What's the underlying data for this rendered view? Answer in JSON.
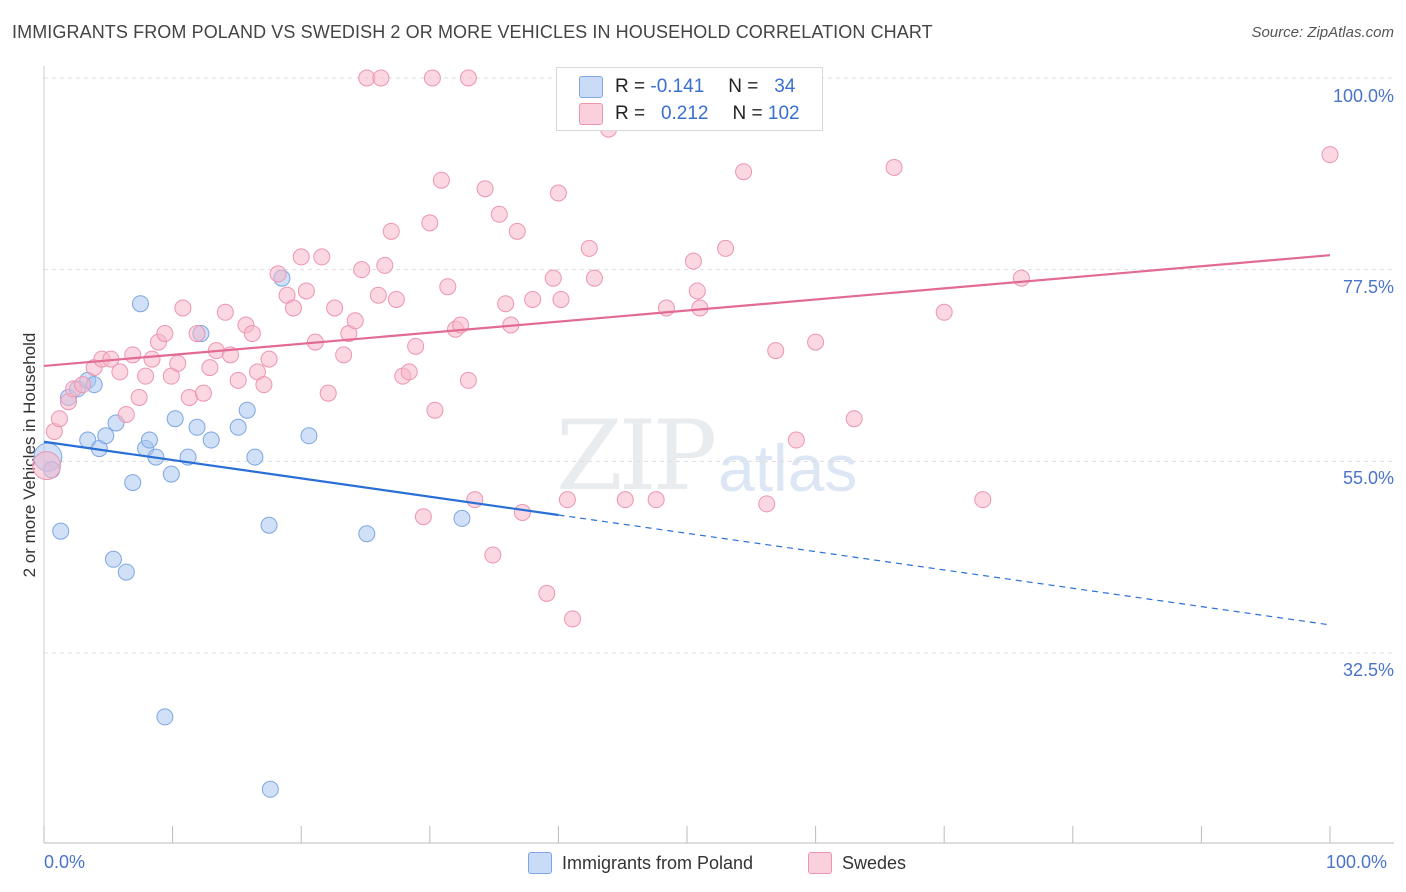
{
  "title": "IMMIGRANTS FROM POLAND VS SWEDISH 2 OR MORE VEHICLES IN HOUSEHOLD CORRELATION CHART",
  "source": "Source: ZipAtlas.com",
  "watermark": {
    "zip": "ZIP",
    "atlas": "atlas"
  },
  "legend_stats": [
    {
      "r_label": "R =",
      "r_value": "-0.141",
      "n_label": "N =",
      "n_value": "34",
      "color": "#a8c6f0"
    },
    {
      "r_label": "R =",
      "r_value": "0.212",
      "n_label": "N =",
      "n_value": "102",
      "color": "#f7b6ca"
    }
  ],
  "chart_data": {
    "type": "scatter",
    "xlabel": "",
    "ylabel": "2 or more Vehicles in Household",
    "xlim": [
      0,
      100
    ],
    "ylim": [
      10,
      100
    ],
    "x_tick_labels": [
      "0.0%",
      "100.0%"
    ],
    "y_ticks": [
      32.5,
      55.0,
      77.5,
      100.0
    ],
    "y_tick_labels": [
      "32.5%",
      "55.0%",
      "77.5%",
      "100.0%"
    ],
    "grid": true,
    "legend": [
      "Immigrants from Poland",
      "Swedes"
    ],
    "series": [
      {
        "name": "Immigrants from Poland",
        "color": "#a8c6f0",
        "stroke": "#7ea6e2",
        "line_color": "#2a6fd6",
        "trend": {
          "x": [
            0,
            40
          ],
          "y": [
            57.3,
            48.7
          ],
          "dashed_to": [
            100,
            35.8
          ]
        },
        "points": [
          [
            0.3,
            55.5
          ],
          [
            0.6,
            54.0
          ],
          [
            1.3,
            46.8
          ],
          [
            1.9,
            62.5
          ],
          [
            2.6,
            63.5
          ],
          [
            3.4,
            64.5
          ],
          [
            3.9,
            64.0
          ],
          [
            3.4,
            57.5
          ],
          [
            4.3,
            56.5
          ],
          [
            4.8,
            58.0
          ],
          [
            5.6,
            59.5
          ],
          [
            5.4,
            43.5
          ],
          [
            6.4,
            42.0
          ],
          [
            6.9,
            52.5
          ],
          [
            7.5,
            73.5
          ],
          [
            7.9,
            56.5
          ],
          [
            8.2,
            57.5
          ],
          [
            8.7,
            55.5
          ],
          [
            9.4,
            25.0
          ],
          [
            9.9,
            53.5
          ],
          [
            10.2,
            60.0
          ],
          [
            11.2,
            55.5
          ],
          [
            11.9,
            59.0
          ],
          [
            12.2,
            70.0
          ],
          [
            13.0,
            57.5
          ],
          [
            15.1,
            59.0
          ],
          [
            15.8,
            61.0
          ],
          [
            16.4,
            55.5
          ],
          [
            17.5,
            47.5
          ],
          [
            17.6,
            16.5
          ],
          [
            18.5,
            76.5
          ],
          [
            20.6,
            58.0
          ],
          [
            25.1,
            46.5
          ],
          [
            32.5,
            48.3
          ]
        ]
      },
      {
        "name": "Swedes",
        "color": "#f7b6ca",
        "stroke": "#ec95b1",
        "line_color": "#e26b93",
        "trend": {
          "x": [
            0,
            100
          ],
          "y": [
            66.2,
            79.2
          ]
        },
        "points": [
          [
            0.2,
            54.5
          ],
          [
            0.8,
            58.5
          ],
          [
            1.2,
            60.0
          ],
          [
            1.9,
            62.0
          ],
          [
            2.3,
            63.5
          ],
          [
            3.0,
            64.0
          ],
          [
            3.9,
            66.0
          ],
          [
            4.5,
            67.0
          ],
          [
            5.2,
            67.0
          ],
          [
            5.9,
            65.5
          ],
          [
            6.4,
            60.5
          ],
          [
            6.9,
            67.5
          ],
          [
            7.4,
            62.5
          ],
          [
            7.9,
            65.0
          ],
          [
            8.4,
            67.0
          ],
          [
            8.9,
            69.0
          ],
          [
            9.4,
            70.0
          ],
          [
            9.9,
            65.0
          ],
          [
            10.4,
            66.5
          ],
          [
            10.8,
            73.0
          ],
          [
            11.3,
            62.5
          ],
          [
            11.9,
            70.0
          ],
          [
            12.4,
            63.0
          ],
          [
            12.9,
            66.0
          ],
          [
            13.4,
            68.0
          ],
          [
            14.1,
            72.5
          ],
          [
            14.5,
            67.5
          ],
          [
            15.1,
            64.5
          ],
          [
            15.7,
            71.0
          ],
          [
            16.2,
            70.0
          ],
          [
            16.6,
            65.5
          ],
          [
            17.1,
            64.0
          ],
          [
            17.5,
            67.0
          ],
          [
            18.2,
            77.0
          ],
          [
            18.9,
            74.5
          ],
          [
            19.4,
            73.0
          ],
          [
            20.0,
            79.0
          ],
          [
            20.4,
            75.0
          ],
          [
            21.1,
            69.0
          ],
          [
            21.6,
            79.0
          ],
          [
            22.1,
            63.0
          ],
          [
            22.6,
            73.0
          ],
          [
            23.3,
            67.5
          ],
          [
            23.7,
            70.0
          ],
          [
            24.2,
            71.5
          ],
          [
            25.1,
            100.0
          ],
          [
            24.7,
            77.5
          ],
          [
            26.0,
            74.5
          ],
          [
            26.5,
            78.0
          ],
          [
            27.0,
            82.0
          ],
          [
            27.4,
            74.0
          ],
          [
            27.9,
            65.0
          ],
          [
            28.4,
            65.5
          ],
          [
            28.9,
            68.5
          ],
          [
            29.5,
            48.5
          ],
          [
            30.0,
            83.0
          ],
          [
            30.4,
            61.0
          ],
          [
            30.9,
            88.0
          ],
          [
            31.4,
            75.5
          ],
          [
            32.0,
            70.5
          ],
          [
            32.4,
            71.0
          ],
          [
            33.0,
            64.5
          ],
          [
            33.5,
            50.5
          ],
          [
            34.3,
            87.0
          ],
          [
            34.9,
            44.0
          ],
          [
            35.4,
            84.0
          ],
          [
            35.9,
            73.5
          ],
          [
            36.3,
            71.0
          ],
          [
            36.8,
            82.0
          ],
          [
            37.2,
            49.0
          ],
          [
            38.0,
            74.0
          ],
          [
            39.1,
            39.5
          ],
          [
            39.6,
            76.5
          ],
          [
            40.0,
            86.5
          ],
          [
            40.2,
            74.0
          ],
          [
            40.7,
            50.5
          ],
          [
            41.1,
            36.5
          ],
          [
            42.4,
            80.0
          ],
          [
            42.8,
            76.5
          ],
          [
            43.3,
            100.0
          ],
          [
            43.9,
            94.0
          ],
          [
            45.2,
            50.5
          ],
          [
            47.6,
            50.5
          ],
          [
            48.4,
            73.0
          ],
          [
            50.5,
            78.5
          ],
          [
            50.8,
            75.0
          ],
          [
            51.0,
            73.0
          ],
          [
            53.0,
            80.0
          ],
          [
            54.4,
            89.0
          ],
          [
            56.2,
            50.0
          ],
          [
            56.9,
            68.0
          ],
          [
            58.5,
            57.5
          ],
          [
            60.0,
            69.0
          ],
          [
            63.0,
            60.0
          ],
          [
            66.1,
            89.5
          ],
          [
            70.0,
            72.5
          ],
          [
            73.0,
            50.5
          ],
          [
            76.0,
            76.5
          ],
          [
            100.0,
            91.0
          ],
          [
            30.2,
            100.0
          ],
          [
            26.2,
            100.0
          ],
          [
            33.0,
            100.0
          ]
        ]
      }
    ]
  }
}
